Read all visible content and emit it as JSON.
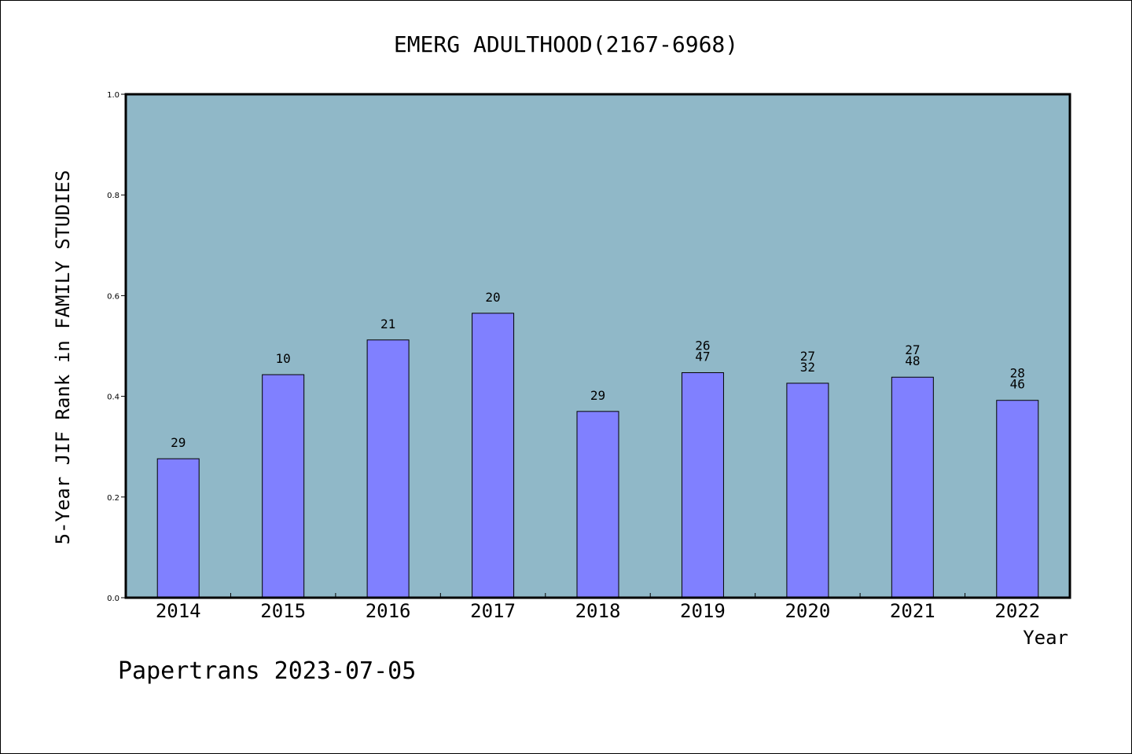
{
  "chart_data": {
    "type": "bar",
    "title": "EMERG ADULTHOOD(2167-6968)",
    "xlabel": "Year",
    "ylabel": "5-Year JIF Rank in FAMILY STUDIES",
    "ylim": [
      0,
      1.0
    ],
    "yticks": [
      "0.0",
      "0.2",
      "0.4",
      "0.6",
      "0.8",
      "1.0"
    ],
    "categories": [
      "2014",
      "2015",
      "2016",
      "2017",
      "2018",
      "2019",
      "2020",
      "2021",
      "2022"
    ],
    "values": [
      0.276,
      0.443,
      0.512,
      0.565,
      0.37,
      0.447,
      0.426,
      0.438,
      0.392
    ],
    "bar_labels": [
      [
        "29"
      ],
      [
        "10"
      ],
      [
        "21"
      ],
      [
        "20"
      ],
      [
        "29"
      ],
      [
        "26",
        "47"
      ],
      [
        "27",
        "32"
      ],
      [
        "27",
        "48"
      ],
      [
        "28",
        "46"
      ]
    ],
    "grid": false,
    "colors": {
      "plot_bg": "#90b8c8",
      "bar": "#8080ff",
      "bar_edge": "#000000"
    }
  },
  "footer": "Papertrans 2023-07-05"
}
